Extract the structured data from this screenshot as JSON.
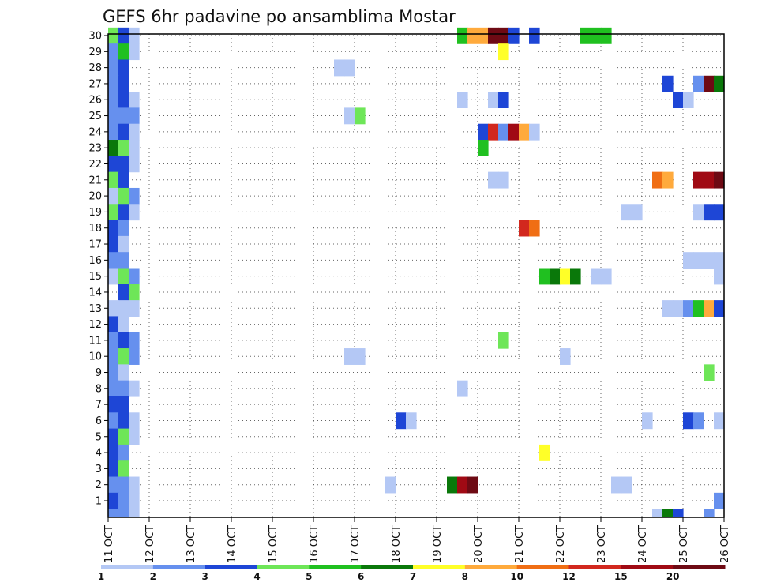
{
  "chart_data": {
    "type": "heatmap",
    "title": "GEFS 6hr padavine po ansamblima Mostar",
    "xlabel": "",
    "ylabel": "",
    "x_axis": {
      "unit": "6-hour step",
      "range": [
        0,
        60
      ],
      "tick_labels": [
        "11 OCT",
        "12 OCT",
        "13 OCT",
        "14 OCT",
        "15 OCT",
        "16 OCT",
        "17 OCT",
        "18 OCT",
        "19 OCT",
        "20 OCT",
        "21 OCT",
        "22 OCT",
        "23 OCT",
        "24 OCT",
        "25 OCT",
        "26 OCT"
      ]
    },
    "y_axis": {
      "unit": "ensemble member",
      "range": [
        0,
        30
      ],
      "tick_labels": [
        "1",
        "2",
        "3",
        "4",
        "5",
        "6",
        "7",
        "8",
        "9",
        "10",
        "11",
        "12",
        "13",
        "14",
        "15",
        "16",
        "17",
        "18",
        "19",
        "20",
        "21",
        "22",
        "23",
        "24",
        "25",
        "26",
        "27",
        "28",
        "29",
        "30"
      ]
    },
    "grid": true,
    "colorbar": {
      "placement": "bottom",
      "labels": [
        "1",
        "2",
        "3",
        "4",
        "5",
        "6",
        "7",
        "8",
        "10",
        "12",
        "15",
        "20"
      ],
      "colors": [
        "#b4c8f5",
        "#6690ee",
        "#1e46d6",
        "#6ee658",
        "#20c020",
        "#0a780a",
        "#ffff28",
        "#ffaa3c",
        "#f06e14",
        "#d2281e",
        "#a00a14",
        "#6e0a14"
      ]
    },
    "cells_note": "each entry: [ensemble member, 6-hour step from 11 OCT 00Z, color class 1-12]",
    "cells": [
      [
        30,
        0,
        4
      ],
      [
        30,
        1,
        3
      ],
      [
        30,
        2,
        1
      ],
      [
        30,
        34,
        5
      ],
      [
        30,
        35,
        8
      ],
      [
        30,
        36,
        8
      ],
      [
        30,
        37,
        12
      ],
      [
        30,
        38,
        12
      ],
      [
        30,
        39,
        3
      ],
      [
        30,
        41,
        3
      ],
      [
        30,
        46,
        5
      ],
      [
        30,
        47,
        5
      ],
      [
        30,
        48,
        5
      ],
      [
        29,
        0,
        2
      ],
      [
        29,
        1,
        5
      ],
      [
        29,
        2,
        1
      ],
      [
        29,
        38,
        7
      ],
      [
        28,
        0,
        2
      ],
      [
        28,
        1,
        3
      ],
      [
        28,
        22,
        1
      ],
      [
        28,
        23,
        1
      ],
      [
        27,
        0,
        2
      ],
      [
        27,
        1,
        3
      ],
      [
        27,
        54,
        3
      ],
      [
        27,
        57,
        2
      ],
      [
        27,
        58,
        12
      ],
      [
        27,
        59,
        6
      ],
      [
        26,
        0,
        2
      ],
      [
        26,
        1,
        3
      ],
      [
        26,
        2,
        1
      ],
      [
        26,
        34,
        1
      ],
      [
        26,
        37,
        1
      ],
      [
        26,
        38,
        3
      ],
      [
        26,
        55,
        3
      ],
      [
        26,
        56,
        1
      ],
      [
        25,
        0,
        2
      ],
      [
        25,
        1,
        2
      ],
      [
        25,
        2,
        2
      ],
      [
        25,
        23,
        1
      ],
      [
        25,
        24,
        4
      ],
      [
        24,
        0,
        2
      ],
      [
        24,
        1,
        3
      ],
      [
        24,
        2,
        1
      ],
      [
        24,
        36,
        3
      ],
      [
        24,
        37,
        10
      ],
      [
        24,
        38,
        2
      ],
      [
        24,
        39,
        11
      ],
      [
        24,
        40,
        8
      ],
      [
        24,
        41,
        1
      ],
      [
        23,
        0,
        6
      ],
      [
        23,
        1,
        4
      ],
      [
        23,
        2,
        1
      ],
      [
        23,
        36,
        5
      ],
      [
        22,
        0,
        3
      ],
      [
        22,
        1,
        3
      ],
      [
        22,
        2,
        1
      ],
      [
        21,
        0,
        4
      ],
      [
        21,
        1,
        3
      ],
      [
        21,
        37,
        1
      ],
      [
        21,
        38,
        1
      ],
      [
        21,
        53,
        9
      ],
      [
        21,
        54,
        8
      ],
      [
        21,
        57,
        11
      ],
      [
        21,
        58,
        11
      ],
      [
        21,
        59,
        12
      ],
      [
        20,
        0,
        1
      ],
      [
        20,
        1,
        4
      ],
      [
        20,
        2,
        2
      ],
      [
        19,
        0,
        4
      ],
      [
        19,
        1,
        3
      ],
      [
        19,
        2,
        1
      ],
      [
        19,
        50,
        1
      ],
      [
        19,
        51,
        1
      ],
      [
        19,
        57,
        1
      ],
      [
        19,
        58,
        3
      ],
      [
        19,
        59,
        3
      ],
      [
        18,
        0,
        3
      ],
      [
        18,
        1,
        2
      ],
      [
        18,
        40,
        10
      ],
      [
        18,
        41,
        9
      ],
      [
        17,
        0,
        3
      ],
      [
        17,
        1,
        1
      ],
      [
        16,
        0,
        2
      ],
      [
        16,
        1,
        2
      ],
      [
        16,
        56,
        1
      ],
      [
        16,
        57,
        1
      ],
      [
        16,
        58,
        1
      ],
      [
        16,
        59,
        1
      ],
      [
        15,
        0,
        1
      ],
      [
        15,
        1,
        4
      ],
      [
        15,
        2,
        2
      ],
      [
        15,
        42,
        5
      ],
      [
        15,
        43,
        6
      ],
      [
        15,
        44,
        7
      ],
      [
        15,
        45,
        6
      ],
      [
        15,
        47,
        1
      ],
      [
        15,
        48,
        1
      ],
      [
        15,
        59,
        1
      ],
      [
        14,
        1,
        3
      ],
      [
        14,
        2,
        4
      ],
      [
        13,
        0,
        1
      ],
      [
        13,
        1,
        1
      ],
      [
        13,
        2,
        1
      ],
      [
        13,
        54,
        1
      ],
      [
        13,
        55,
        1
      ],
      [
        13,
        56,
        2
      ],
      [
        13,
        57,
        5
      ],
      [
        13,
        58,
        8
      ],
      [
        13,
        59,
        3
      ],
      [
        12,
        0,
        3
      ],
      [
        12,
        1,
        1
      ],
      [
        11,
        0,
        2
      ],
      [
        11,
        1,
        3
      ],
      [
        11,
        2,
        2
      ],
      [
        11,
        38,
        4
      ],
      [
        10,
        0,
        2
      ],
      [
        10,
        1,
        4
      ],
      [
        10,
        2,
        2
      ],
      [
        10,
        23,
        1
      ],
      [
        10,
        24,
        1
      ],
      [
        10,
        44,
        1
      ],
      [
        9,
        0,
        2
      ],
      [
        9,
        1,
        1
      ],
      [
        9,
        58,
        4
      ],
      [
        8,
        0,
        2
      ],
      [
        8,
        1,
        2
      ],
      [
        8,
        2,
        1
      ],
      [
        8,
        34,
        1
      ],
      [
        7,
        0,
        3
      ],
      [
        7,
        1,
        3
      ],
      [
        6,
        0,
        2
      ],
      [
        6,
        1,
        3
      ],
      [
        6,
        2,
        1
      ],
      [
        6,
        28,
        3
      ],
      [
        6,
        29,
        1
      ],
      [
        6,
        52,
        1
      ],
      [
        6,
        56,
        3
      ],
      [
        6,
        57,
        2
      ],
      [
        6,
        59,
        1
      ],
      [
        5,
        0,
        3
      ],
      [
        5,
        1,
        4
      ],
      [
        5,
        2,
        1
      ],
      [
        4,
        0,
        3
      ],
      [
        4,
        1,
        2
      ],
      [
        4,
        42,
        7
      ],
      [
        3,
        0,
        3
      ],
      [
        3,
        1,
        4
      ],
      [
        2,
        0,
        2
      ],
      [
        2,
        1,
        2
      ],
      [
        2,
        2,
        1
      ],
      [
        2,
        27,
        1
      ],
      [
        2,
        33,
        6
      ],
      [
        2,
        34,
        11
      ],
      [
        2,
        35,
        12
      ],
      [
        2,
        49,
        1
      ],
      [
        2,
        50,
        1
      ],
      [
        1,
        0,
        3
      ],
      [
        1,
        1,
        2
      ],
      [
        1,
        2,
        1
      ],
      [
        1,
        59,
        2
      ]
    ],
    "below_axis_cells_note": "cells drawn beneath member 1 row: [6-hour step, color class]",
    "below_axis_cells": [
      [
        0,
        2
      ],
      [
        1,
        2
      ],
      [
        2,
        1
      ],
      [
        53,
        1
      ],
      [
        54,
        6
      ],
      [
        55,
        3
      ],
      [
        58,
        2
      ]
    ]
  }
}
